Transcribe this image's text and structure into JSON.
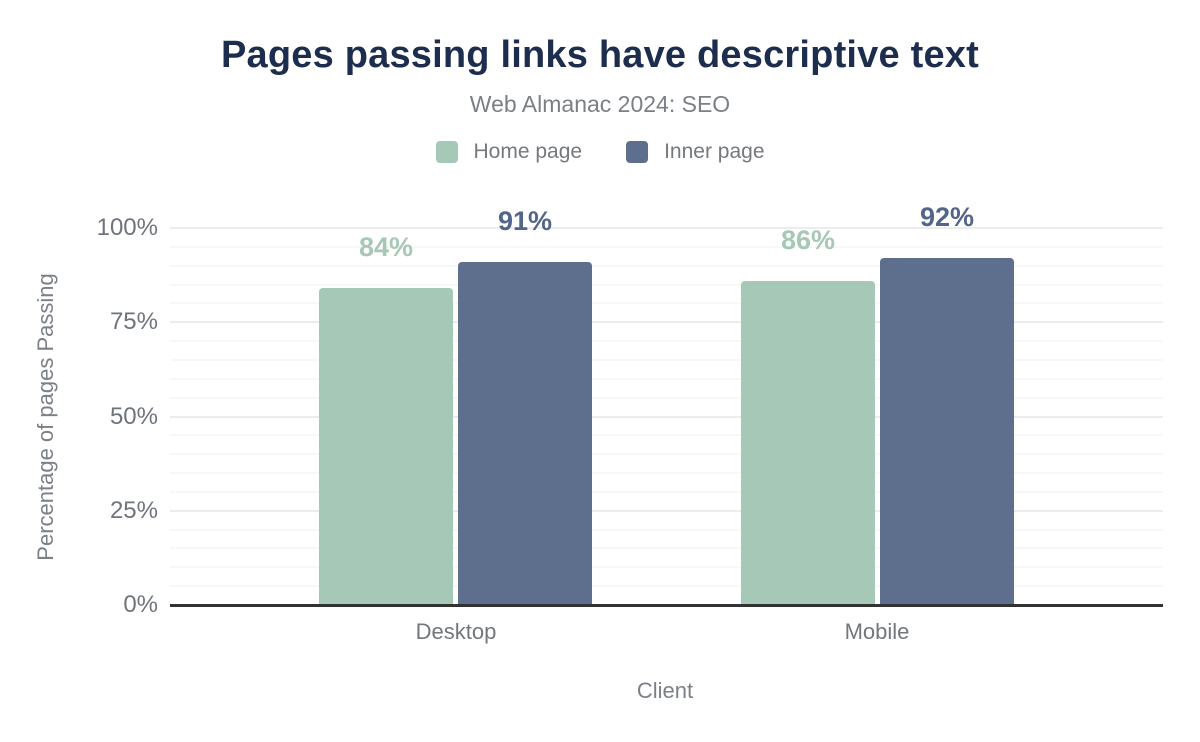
{
  "title": "Pages passing links have descriptive text",
  "subtitle": "Web Almanac 2024: SEO",
  "colors": {
    "title": "#1d2d4d",
    "muted_text": "#7b8086",
    "tick_text": "#6f747b",
    "axis_baseline": "#323232",
    "home_page_green": "#a6c8b6",
    "inner_page_navy": "#5e6e8d"
  },
  "chart_data": {
    "type": "bar",
    "title": "Pages passing links have descriptive text",
    "subtitle": "Web Almanac 2024: SEO",
    "categories": [
      "Desktop",
      "Mobile"
    ],
    "series": [
      {
        "name": "Home page",
        "color": "#a6c8b6",
        "label_color": "#a6c8b6",
        "values": [
          84,
          86
        ]
      },
      {
        "name": "Inner page",
        "color": "#5e6e8d",
        "label_color": "#53658a",
        "values": [
          91,
          92
        ]
      }
    ],
    "value_suffix": "%",
    "xlabel": "Client",
    "ylabel": "Percentage of pages Passing",
    "ylim": [
      0,
      100
    ],
    "yticks": [
      0,
      25,
      50,
      75,
      100
    ],
    "ytick_suffix": "%",
    "grid": "horizontal; minor every 5%, major every 25%",
    "legend_position": "top"
  }
}
